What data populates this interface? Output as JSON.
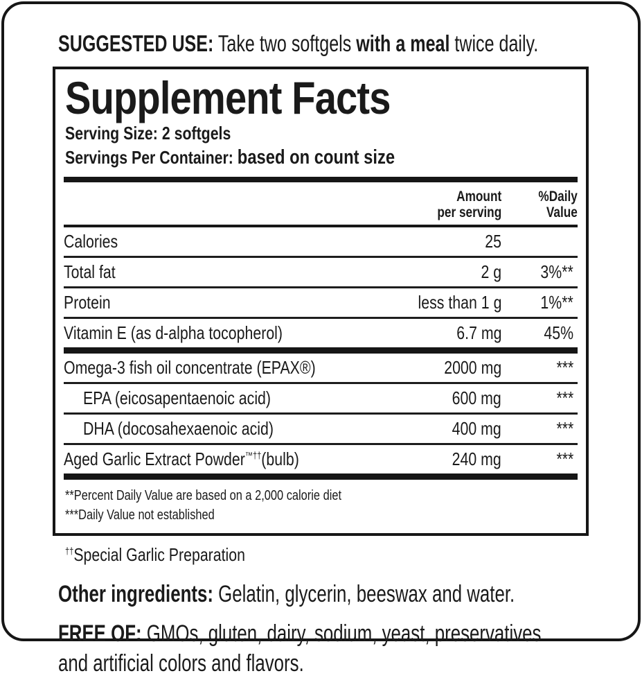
{
  "colors": {
    "ink": "#1a1a1a",
    "border": "#161616",
    "background": "#ffffff"
  },
  "suggested_use": {
    "label": "SUGGESTED USE:",
    "pre": " Take two softgels ",
    "bold": "with a meal",
    "post": " twice daily."
  },
  "panel": {
    "title": "Supplement Facts",
    "serving_size": {
      "label": "Serving Size:",
      "value": " 2 softgels"
    },
    "servings_per_container": {
      "label": "Servings Per Container: ",
      "value": "based on count size"
    },
    "columns": {
      "amount": "Amount\nper serving",
      "daily_value": "%Daily\nValue"
    },
    "main_rows": [
      {
        "name": "Calories",
        "amount": "25",
        "dv": ""
      },
      {
        "name": "Total fat",
        "amount": "2 g",
        "dv": "3%**"
      },
      {
        "name": "Protein",
        "amount": "less than 1 g",
        "dv": "1%**"
      },
      {
        "name": "Vitamin E (as d-alpha tocopherol)",
        "amount": "6.7 mg",
        "dv": "45%"
      }
    ],
    "blend_rows": [
      {
        "name": "Omega-3 fish oil concentrate (EPAX®)",
        "amount": "2000 mg",
        "dv": "***"
      },
      {
        "name": "EPA (eicosapentaenoic acid)",
        "amount": "600 mg",
        "dv": "***"
      },
      {
        "name": "DHA (docosahexaenoic acid)",
        "amount": "400 mg",
        "dv": "***"
      },
      {
        "name": "Aged Garlic Extract Powder",
        "name_sup": "™††",
        "name_suffix": "(bulb)",
        "amount": "240 mg",
        "dv": "***"
      }
    ],
    "footnotes": "**Percent Daily Value are based on a 2,000 calorie diet\n***Daily Value not established"
  },
  "garlic_note": {
    "marker": "††",
    "text": "Special Garlic Preparation"
  },
  "other_ingredients": {
    "label": "Other ingredients:",
    "text": " Gelatin, glycerin, beeswax and water."
  },
  "free_of": {
    "label": "FREE OF:",
    "text": " GMOs, gluten, dairy, sodium, yeast, preservatives\nand artificial colors and flavors."
  }
}
